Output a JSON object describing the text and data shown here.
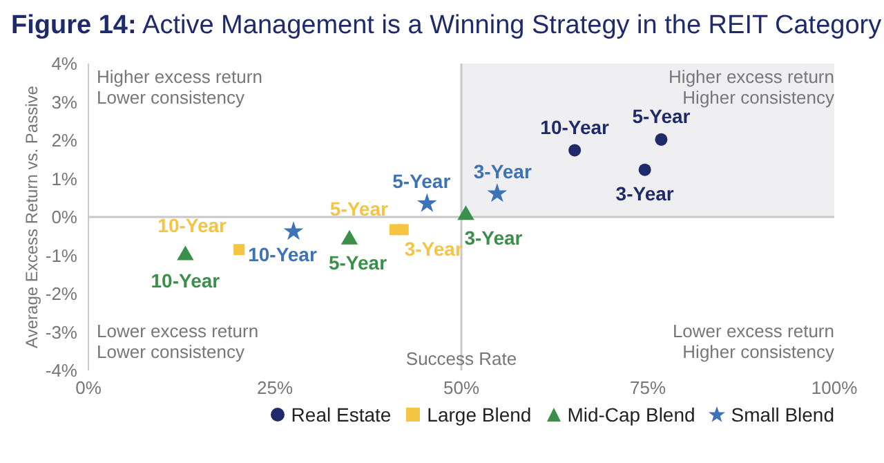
{
  "chart_data": {
    "type": "scatter",
    "title": "Figure 14: Active Management is a Winning Strategy in the REIT Category",
    "xlabel": "Success Rate",
    "ylabel": "Average Excess Return vs. Passive",
    "xlim": [
      0,
      100
    ],
    "xticks": [
      {
        "value": 0,
        "label": "0%"
      },
      {
        "value": 25,
        "label": "25%"
      },
      {
        "value": 50,
        "label": "50%"
      },
      {
        "value": 75,
        "label": "75%"
      },
      {
        "value": 100,
        "label": "100%"
      }
    ],
    "ylim": [
      -4,
      4
    ],
    "yticks": [
      {
        "value": -4,
        "label": "-4%"
      },
      {
        "value": -3,
        "label": "-3%"
      },
      {
        "value": -2,
        "label": "-2%"
      },
      {
        "value": -1,
        "label": "-1%"
      },
      {
        "value": 0,
        "label": "0%"
      },
      {
        "value": 1,
        "label": "1%"
      },
      {
        "value": 2,
        "label": "2%"
      },
      {
        "value": 3,
        "label": "3%"
      },
      {
        "value": 4,
        "label": "4%"
      }
    ],
    "series": [
      {
        "name": "Real Estate",
        "color": "#1f2a6b",
        "marker": "circle",
        "x": [
          65.2,
          76.8,
          74.6
        ],
        "values": [
          1.74,
          2.02,
          1.23
        ]
      },
      {
        "name": "Large Blend",
        "color": "#f5c542",
        "marker": "square",
        "x": [
          20.2,
          41.1,
          42.2
        ],
        "values": [
          -0.85,
          -0.33,
          -0.33
        ]
      },
      {
        "name": "Mid-Cap Blend",
        "color": "#3a8f4a",
        "marker": "triangle",
        "x": [
          13.0,
          35.0,
          50.6
        ],
        "values": [
          -1.0,
          -0.59,
          0.05
        ]
      },
      {
        "name": "Small Blend",
        "color": "#3d72b8",
        "marker": "star",
        "x": [
          27.5,
          45.4,
          54.8
        ],
        "values": [
          -0.38,
          0.35,
          0.61
        ]
      }
    ],
    "ref_lines": [
      {
        "axis": "y",
        "value": 0,
        "color": "#c8c8c8"
      },
      {
        "axis": "x",
        "value": 50,
        "color": "#c8c8c8"
      }
    ],
    "bands": [
      {
        "axis": "x",
        "from": 50,
        "to": 100,
        "color": "#efeff2"
      }
    ],
    "annotations": [
      "Higher excess return\nLower consistency",
      "Higher excess return\nHigher consistency",
      "Lower excess return\nLower consistency",
      "Lower excess return\nHigher consistency",
      {
        "text": "10-Year",
        "x": 65.2,
        "y": 1.74
      },
      {
        "text": "5-Year",
        "x": 76.8,
        "y": 2.02
      },
      {
        "text": "3-Year",
        "x": 74.6,
        "y": 1.23
      },
      {
        "text": "10-Year",
        "x": 20.2,
        "y": -0.85
      },
      {
        "text": "5-Year",
        "x": 41.1,
        "y": -0.33
      },
      {
        "text": "3-Year",
        "x": 42.2,
        "y": -0.33
      },
      {
        "text": "10-Year",
        "x": 13.0,
        "y": -1.0
      },
      {
        "text": "5-Year",
        "x": 35.0,
        "y": -0.59
      },
      {
        "text": "3-Year",
        "x": 50.6,
        "y": 0.05
      },
      {
        "text": "10-Year",
        "x": 27.5,
        "y": -0.38
      },
      {
        "text": "5-Year",
        "x": 45.4,
        "y": 0.35
      },
      {
        "text": "3-Year",
        "x": 54.8,
        "y": 0.61
      }
    ],
    "grid": false,
    "legend": "bottom right"
  }
}
